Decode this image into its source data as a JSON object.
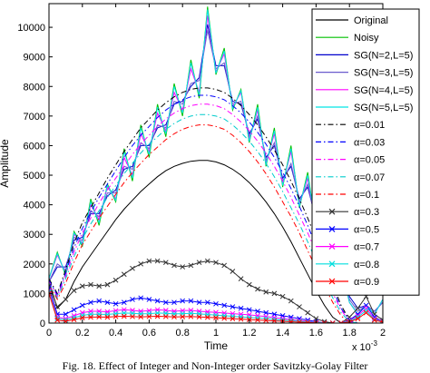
{
  "caption": "Fig. 18. Effect of Integer and Non-Integer order Savitzky-Golay Filter",
  "chart_data": {
    "type": "line",
    "title": "",
    "xlabel": "Time",
    "ylabel": "Amplitude",
    "x_exponent": "x 10^-3",
    "x_exponent_label": "x 10",
    "x_exponent_power": "-3",
    "xlim": [
      0,
      2
    ],
    "ylim": [
      0,
      10800
    ],
    "xticks": [
      0,
      0.2,
      0.4,
      0.6,
      0.8,
      1,
      1.2,
      1.4,
      1.6,
      1.8,
      2
    ],
    "xtick_labels": [
      "0",
      "0.2",
      "0.4",
      "0.6",
      "0.8",
      "1",
      "1.2",
      "1.4",
      "1.6",
      "1.8",
      "2"
    ],
    "yticks": [
      0,
      1000,
      2000,
      3000,
      4000,
      5000,
      6000,
      7000,
      8000,
      9000,
      10000
    ],
    "ytick_labels": [
      "0",
      "1000",
      "2000",
      "3000",
      "4000",
      "5000",
      "6000",
      "7000",
      "8000",
      "9000",
      "10000"
    ],
    "grid": false,
    "legend_position": "right",
    "x": [
      0,
      0.05,
      0.1,
      0.15,
      0.2,
      0.25,
      0.3,
      0.35,
      0.4,
      0.45,
      0.5,
      0.55,
      0.6,
      0.65,
      0.7,
      0.75,
      0.8,
      0.85,
      0.9,
      0.95,
      1,
      1.05,
      1.1,
      1.15,
      1.2,
      1.25,
      1.3,
      1.35,
      1.4,
      1.45,
      1.5,
      1.55,
      1.6,
      1.65,
      1.7,
      1.75,
      1.8,
      1.85,
      1.9,
      1.95,
      2
    ],
    "series": [
      {
        "name": "Original",
        "color": "#000000",
        "style": "solid",
        "marker": "none",
        "values": [
          1400,
          500,
          800,
          1400,
          1900,
          2300,
          2700,
          3100,
          3500,
          3850,
          4150,
          4450,
          4700,
          4950,
          5150,
          5300,
          5400,
          5470,
          5500,
          5500,
          5450,
          5350,
          5200,
          5000,
          4750,
          4450,
          4100,
          3700,
          3250,
          2750,
          2200,
          1650,
          1100,
          600,
          200,
          0,
          0,
          0,
          0,
          0,
          0
        ]
      },
      {
        "name": "Noisy",
        "color": "#00c000",
        "style": "solid",
        "marker": "none",
        "values": [
          1500,
          2400,
          1600,
          3100,
          2600,
          4200,
          3300,
          4700,
          4100,
          5900,
          4800,
          6700,
          5600,
          7400,
          6300,
          8100,
          7000,
          8900,
          7600,
          10700,
          8400,
          9300,
          7200,
          7900,
          6100,
          7400,
          5300,
          6600,
          4600,
          6000,
          3900,
          5100,
          3200,
          4300,
          2600,
          1900,
          700,
          300,
          600,
          300,
          800
        ]
      },
      {
        "name": "SG(N=2,L=5)",
        "color": "#0000cc",
        "style": "solid",
        "marker": "none",
        "values": [
          1400,
          1900,
          1900,
          2800,
          2900,
          3700,
          3700,
          4300,
          4500,
          5200,
          5300,
          6000,
          6000,
          6600,
          6700,
          7400,
          7500,
          8000,
          8300,
          10100,
          8700,
          8700,
          7500,
          7400,
          6400,
          6900,
          5600,
          6000,
          4900,
          5300,
          4200,
          4600,
          3500,
          3700,
          2700,
          1900,
          900,
          500,
          600,
          400,
          700
        ]
      },
      {
        "name": "SG(N=3,L=5)",
        "color": "#6a5acd",
        "style": "solid",
        "marker": "none",
        "values": [
          1400,
          2000,
          1800,
          2900,
          2800,
          3800,
          3600,
          4400,
          4400,
          5300,
          5200,
          6100,
          5900,
          6700,
          6600,
          7500,
          7400,
          8100,
          8200,
          9900,
          8600,
          8800,
          7400,
          7500,
          6300,
          7000,
          5500,
          6100,
          4800,
          5400,
          4100,
          4700,
          3400,
          3800,
          2600,
          2000,
          800,
          400,
          600,
          400,
          700
        ]
      },
      {
        "name": "SG(N=4,L=5)",
        "color": "#ff00ff",
        "style": "solid",
        "marker": "none",
        "values": [
          1500,
          2300,
          1700,
          3000,
          2700,
          4000,
          3500,
          4600,
          4200,
          5600,
          5000,
          6400,
          5800,
          7100,
          6500,
          7800,
          7200,
          8600,
          7800,
          10400,
          8500,
          9100,
          7300,
          7800,
          6200,
          7200,
          5400,
          6400,
          4700,
          5800,
          4000,
          4900,
          3300,
          4100,
          2600,
          1900,
          700,
          300,
          600,
          300,
          800
        ]
      },
      {
        "name": "SG(N=5,L=5)",
        "color": "#00e5e5",
        "style": "solid",
        "marker": "none",
        "values": [
          1500,
          2350,
          1650,
          3050,
          2650,
          4100,
          3400,
          4650,
          4150,
          5800,
          4900,
          6600,
          5700,
          7300,
          6400,
          8000,
          7100,
          8800,
          7700,
          10600,
          8450,
          9200,
          7250,
          7850,
          6150,
          7300,
          5350,
          6500,
          4650,
          5900,
          3950,
          5000,
          3250,
          4200,
          2600,
          1900,
          700,
          300,
          600,
          300,
          800
        ]
      },
      {
        "name": "α=0.01",
        "color": "#000000",
        "style": "dashdot",
        "marker": "none",
        "values": [
          1500,
          1000,
          1800,
          2700,
          3400,
          3900,
          4400,
          4900,
          5350,
          5800,
          6200,
          6600,
          6900,
          7200,
          7450,
          7650,
          7800,
          7900,
          7950,
          7950,
          7900,
          7800,
          7600,
          7350,
          7050,
          6700,
          6300,
          5850,
          5350,
          4800,
          4200,
          3550,
          2850,
          2100,
          1300,
          600,
          100,
          0,
          0,
          0,
          0
        ]
      },
      {
        "name": "α=0.03",
        "color": "#0000ff",
        "style": "dashdot",
        "marker": "none",
        "values": [
          1450,
          950,
          1700,
          2550,
          3200,
          3750,
          4250,
          4700,
          5150,
          5600,
          6000,
          6350,
          6650,
          6950,
          7200,
          7400,
          7550,
          7650,
          7700,
          7700,
          7650,
          7550,
          7350,
          7100,
          6800,
          6450,
          6050,
          5600,
          5100,
          4550,
          3950,
          3300,
          2600,
          1900,
          1150,
          500,
          100,
          0,
          0,
          0,
          0
        ]
      },
      {
        "name": "α=0.05",
        "color": "#ff00ff",
        "style": "dashdot",
        "marker": "none",
        "values": [
          1400,
          900,
          1600,
          2400,
          3050,
          3550,
          4050,
          4500,
          4900,
          5300,
          5700,
          6050,
          6350,
          6650,
          6900,
          7100,
          7250,
          7350,
          7400,
          7400,
          7350,
          7250,
          7050,
          6800,
          6500,
          6150,
          5750,
          5300,
          4800,
          4250,
          3650,
          3050,
          2400,
          1700,
          1000,
          450,
          50,
          0,
          0,
          0,
          0
        ]
      },
      {
        "name": "α=0.07",
        "color": "#00cccc",
        "style": "dashdot",
        "marker": "none",
        "values": [
          1350,
          850,
          1500,
          2250,
          2850,
          3350,
          3800,
          4250,
          4650,
          5050,
          5400,
          5750,
          6050,
          6300,
          6550,
          6750,
          6900,
          7000,
          7050,
          7050,
          7000,
          6900,
          6700,
          6450,
          6150,
          5800,
          5400,
          4950,
          4450,
          3900,
          3350,
          2750,
          2100,
          1450,
          850,
          350,
          50,
          0,
          0,
          0,
          0
        ]
      },
      {
        "name": "α=0.1",
        "color": "#ff0000",
        "style": "dashdot",
        "marker": "none",
        "values": [
          1300,
          800,
          1350,
          2050,
          2650,
          3100,
          3550,
          3950,
          4350,
          4750,
          5100,
          5400,
          5700,
          5950,
          6200,
          6400,
          6550,
          6650,
          6700,
          6700,
          6650,
          6550,
          6350,
          6100,
          5800,
          5450,
          5050,
          4600,
          4100,
          3600,
          3050,
          2450,
          1850,
          1250,
          700,
          250,
          0,
          0,
          0,
          0,
          0
        ]
      },
      {
        "name": "α=0.3",
        "color": "#333333",
        "style": "solid",
        "marker": "x",
        "values": [
          1250,
          550,
          800,
          1100,
          1250,
          1300,
          1250,
          1300,
          1450,
          1650,
          1850,
          2000,
          2100,
          2100,
          2050,
          1950,
          1900,
          1950,
          2050,
          2100,
          2050,
          1950,
          1750,
          1500,
          1300,
          1150,
          1050,
          1000,
          900,
          750,
          550,
          350,
          150,
          50,
          0,
          0,
          200,
          500,
          900,
          300,
          100
        ]
      },
      {
        "name": "α=0.5",
        "color": "#0000ff",
        "style": "solid",
        "marker": "x",
        "values": [
          1200,
          300,
          300,
          450,
          600,
          700,
          750,
          700,
          650,
          700,
          800,
          850,
          800,
          750,
          700,
          700,
          750,
          750,
          700,
          700,
          650,
          600,
          550,
          500,
          450,
          400,
          350,
          300,
          250,
          200,
          150,
          100,
          50,
          0,
          0,
          0,
          100,
          300,
          600,
          200,
          50
        ]
      },
      {
        "name": "α=0.7",
        "color": "#ff00ff",
        "style": "solid",
        "marker": "x",
        "values": [
          1100,
          200,
          150,
          250,
          350,
          400,
          400,
          380,
          420,
          450,
          430,
          400,
          420,
          450,
          430,
          400,
          420,
          430,
          400,
          380,
          360,
          340,
          320,
          300,
          280,
          250,
          220,
          180,
          150,
          120,
          90,
          60,
          30,
          0,
          0,
          0,
          80,
          250,
          500,
          150,
          50
        ]
      },
      {
        "name": "α=0.8",
        "color": "#00dddd",
        "style": "solid",
        "marker": "x",
        "values": [
          1050,
          150,
          100,
          180,
          260,
          300,
          300,
          290,
          320,
          340,
          330,
          310,
          320,
          340,
          330,
          310,
          320,
          330,
          310,
          290,
          270,
          250,
          230,
          210,
          190,
          170,
          150,
          120,
          100,
          80,
          60,
          40,
          20,
          0,
          0,
          0,
          60,
          200,
          420,
          120,
          40
        ]
      },
      {
        "name": "α=0.9",
        "color": "#ff0000",
        "style": "solid",
        "marker": "x",
        "values": [
          1000,
          100,
          60,
          120,
          180,
          200,
          210,
          200,
          220,
          230,
          220,
          210,
          220,
          230,
          220,
          210,
          215,
          220,
          210,
          195,
          180,
          165,
          150,
          135,
          120,
          105,
          90,
          75,
          60,
          45,
          30,
          20,
          10,
          0,
          0,
          0,
          40,
          150,
          350,
          100,
          30
        ]
      }
    ]
  }
}
